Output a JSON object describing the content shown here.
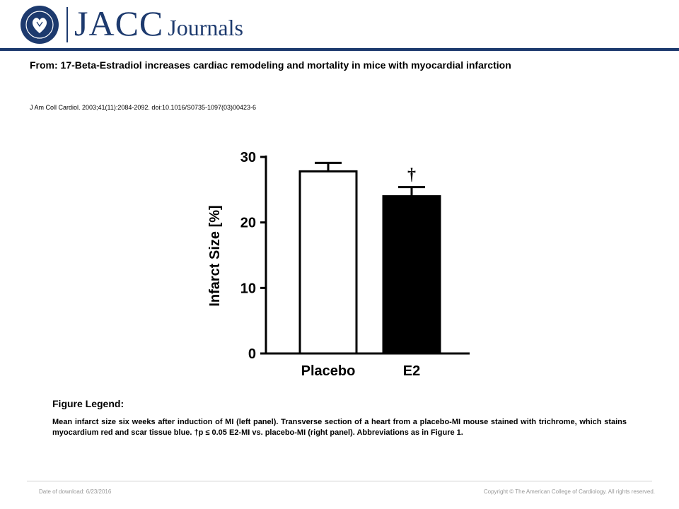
{
  "header": {
    "logo_main": "JACC",
    "logo_sub": "Journals",
    "seal_text": "AMERICAN COLLEGE OF CARDIOLOGY"
  },
  "article": {
    "title": "From: 17-Beta-Estradiol increases cardiac remodeling and mortality in mice with myocardial infarction",
    "citation": "J Am Coll Cardiol. 2003;41(11):2084-2092. doi:10.1016/S0735-1097(03)00423-6"
  },
  "chart_data": {
    "type": "bar",
    "categories": [
      "Placebo",
      "E2"
    ],
    "values": [
      27.8,
      24.0
    ],
    "errors": [
      1.3,
      1.4
    ],
    "bar_colors": [
      "#ffffff",
      "#000000"
    ],
    "annotations": [
      "",
      "†"
    ],
    "ylabel": "Infarct Size [%]",
    "ylim": [
      0,
      30
    ],
    "yticks": [
      0,
      10,
      20,
      30
    ],
    "grid": false
  },
  "legend": {
    "heading": "Figure Legend:",
    "text": "Mean infarct size six weeks after induction of MI (left panel). Transverse section of a heart from a placebo-MI mouse stained with trichrome, which stains myocardium red and scar tissue blue. †p ≤ 0.05 E2-MI vs. placebo-MI (right panel). Abbreviations as in Figure 1."
  },
  "footer": {
    "date": "Date of download: 6/23/2016",
    "copyright": "Copyright © The American College of Cardiology. All rights reserved."
  }
}
